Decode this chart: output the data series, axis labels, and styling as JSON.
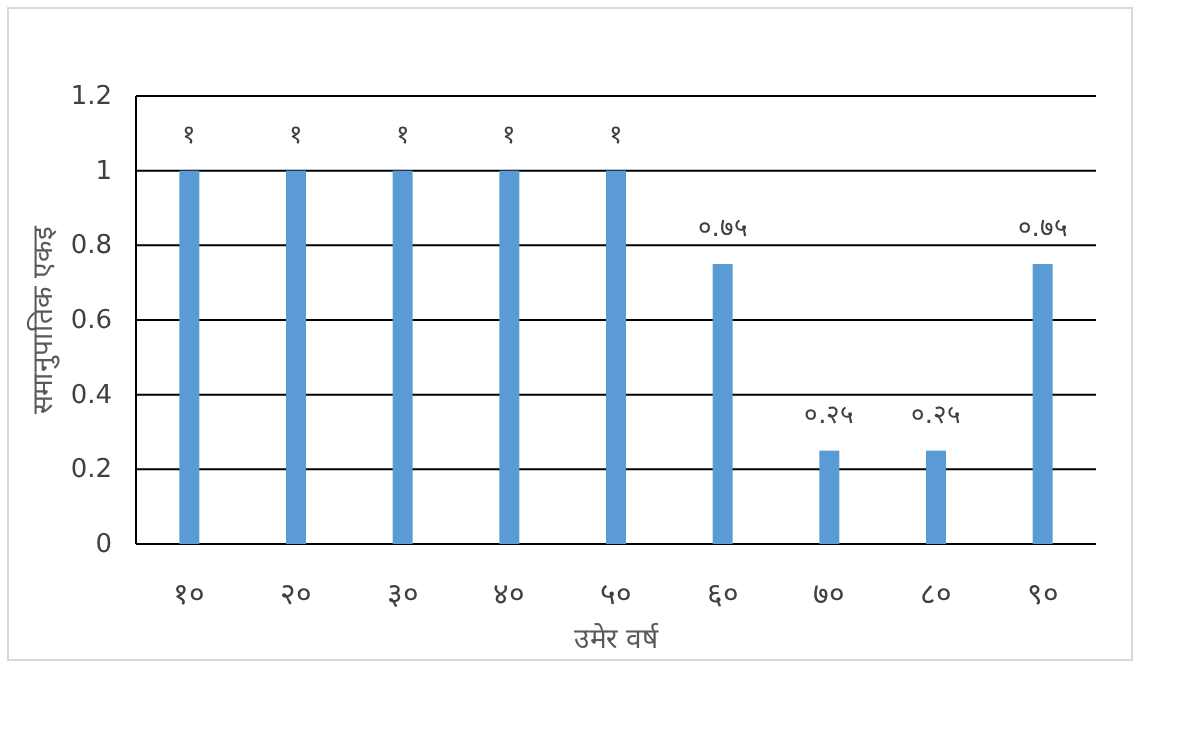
{
  "chart_data": {
    "type": "bar",
    "xlabel": "उमेर वर्ष",
    "ylabel": "समानुपातिक एकइ",
    "categories": [
      "१०",
      "२०",
      "३०",
      "४०",
      "५०",
      "६०",
      "७०",
      "८०",
      "९०"
    ],
    "values": [
      1,
      1,
      1,
      1,
      1,
      0.75,
      0.25,
      0.25,
      0.75
    ],
    "value_labels": [
      "१",
      "१",
      "१",
      "१",
      "१",
      "०.७५",
      "०.२५",
      "०.२५",
      "०.७५"
    ],
    "color": "#5b9bd5",
    "ylim": [
      0,
      1.2
    ],
    "yticks": [
      0,
      0.2,
      0.4,
      0.6,
      0.8,
      1,
      1.2
    ],
    "grid": "y"
  }
}
